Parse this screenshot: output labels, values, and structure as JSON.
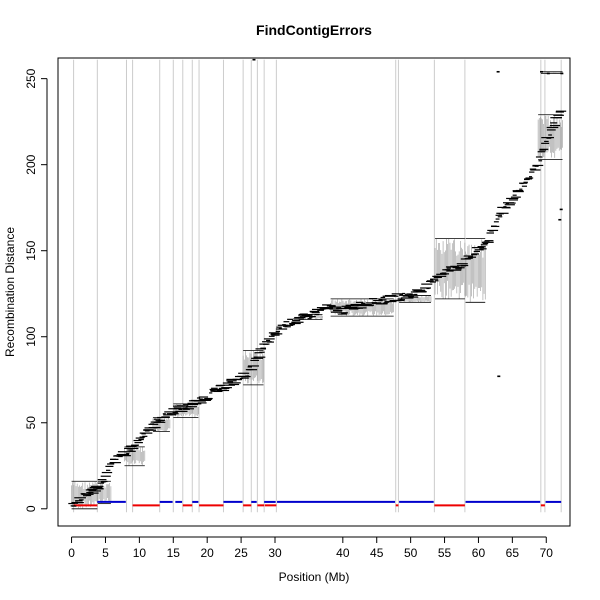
{
  "chart_data": {
    "type": "scatter",
    "title": "FindContigErrors",
    "xlabel": "Position (Mb)",
    "ylabel": "Recombination Distance",
    "xlim": [
      -2,
      73.5
    ],
    "ylim": [
      -10,
      262
    ],
    "x_ticks": [
      0,
      5,
      10,
      15,
      20,
      25,
      30,
      40,
      45,
      50,
      55,
      60,
      65,
      70
    ],
    "x_tick_labels": [
      "0",
      "5",
      "10",
      "15",
      "20",
      "25",
      "30",
      "40",
      "45",
      "50",
      "55",
      "60",
      "65",
      "70"
    ],
    "y_ticks": [
      0,
      50,
      100,
      150,
      200,
      250
    ],
    "y_tick_labels": [
      "0",
      "50",
      "100",
      "150",
      "200",
      "250"
    ],
    "grid": false,
    "colors": {
      "points": "#000000",
      "boundary_lines": "#cccccc",
      "interval_bars": "#999999",
      "good_segments": "#0000cc",
      "error_segments": "#ee0000"
    },
    "contig_boundaries": [
      0.3,
      3.8,
      8.1,
      9.0,
      13.0,
      15.0,
      16.4,
      17.8,
      18.8,
      22.4,
      25.3,
      26.5,
      27.4,
      28.4,
      30.2,
      47.8,
      48.2,
      53.5,
      58.0,
      69.2,
      69.8,
      72.2
    ],
    "trend": [
      [
        0.0,
        2
      ],
      [
        1.0,
        5
      ],
      [
        2.0,
        8
      ],
      [
        3.0,
        10
      ],
      [
        4.0,
        13
      ],
      [
        5.0,
        18
      ],
      [
        6.0,
        27
      ],
      [
        7.0,
        30
      ],
      [
        8.0,
        33
      ],
      [
        9.0,
        35
      ],
      [
        10.0,
        40
      ],
      [
        11.0,
        45
      ],
      [
        12.0,
        48
      ],
      [
        13.0,
        52
      ],
      [
        14.0,
        54
      ],
      [
        15.0,
        57
      ],
      [
        16.0,
        58
      ],
      [
        17.0,
        59
      ],
      [
        18.0,
        61
      ],
      [
        19.0,
        63
      ],
      [
        20.0,
        65
      ],
      [
        21.0,
        68
      ],
      [
        22.0,
        70
      ],
      [
        23.0,
        72
      ],
      [
        24.0,
        74
      ],
      [
        25.0,
        76
      ],
      [
        26.0,
        79
      ],
      [
        27.0,
        85
      ],
      [
        28.0,
        92
      ],
      [
        29.0,
        97
      ],
      [
        30.0,
        101
      ],
      [
        31.0,
        106
      ],
      [
        32.0,
        108
      ],
      [
        33.0,
        109
      ],
      [
        34.0,
        111
      ],
      [
        35.0,
        112
      ],
      [
        36.0,
        114
      ],
      [
        37.0,
        116
      ],
      [
        38.0,
        117
      ],
      [
        40.0,
        115
      ],
      [
        42.0,
        118
      ],
      [
        44.0,
        120
      ],
      [
        46.0,
        121
      ],
      [
        48.0,
        123
      ],
      [
        50.0,
        124
      ],
      [
        52.0,
        128
      ],
      [
        53.0,
        131
      ],
      [
        54.0,
        135
      ],
      [
        55.0,
        138
      ],
      [
        56.0,
        139
      ],
      [
        57.0,
        141
      ],
      [
        58.0,
        143
      ],
      [
        59.0,
        147
      ],
      [
        60.0,
        150
      ],
      [
        61.0,
        154
      ],
      [
        62.0,
        160
      ],
      [
        63.0,
        170
      ],
      [
        64.0,
        176
      ],
      [
        65.0,
        180
      ],
      [
        66.0,
        185
      ],
      [
        67.0,
        190
      ],
      [
        68.0,
        196
      ],
      [
        69.0,
        203
      ],
      [
        70.0,
        212
      ],
      [
        71.0,
        222
      ],
      [
        72.0,
        230
      ]
    ],
    "bands": [
      {
        "x0": 0.0,
        "x1": 3.8,
        "y0": 0,
        "y1": 16
      },
      {
        "x0": 3.9,
        "x1": 5.8,
        "y0": 3,
        "y1": 16
      },
      {
        "x0": 7.8,
        "x1": 10.8,
        "y0": 25,
        "y1": 36
      },
      {
        "x0": 12.0,
        "x1": 14.5,
        "y0": 45,
        "y1": 53
      },
      {
        "x0": 15.0,
        "x1": 18.7,
        "y0": 53,
        "y1": 61
      },
      {
        "x0": 25.3,
        "x1": 28.3,
        "y0": 72,
        "y1": 92
      },
      {
        "x0": 33.5,
        "x1": 37.0,
        "y0": 110,
        "y1": 113
      },
      {
        "x0": 38.2,
        "x1": 47.5,
        "y0": 112,
        "y1": 122
      },
      {
        "x0": 48.3,
        "x1": 53.0,
        "y0": 120,
        "y1": 124
      },
      {
        "x0": 53.6,
        "x1": 58.0,
        "y0": 122,
        "y1": 157
      },
      {
        "x0": 58.1,
        "x1": 61.0,
        "y0": 120,
        "y1": 157
      },
      {
        "x0": 68.8,
        "x1": 72.4,
        "y0": 203,
        "y1": 229
      },
      {
        "x0": 69.2,
        "x1": 72.4,
        "y0": 253,
        "y1": 254
      }
    ],
    "outliers": [
      [
        26.9,
        261
      ],
      [
        62.9,
        254
      ],
      [
        63.0,
        77
      ],
      [
        72.0,
        168
      ],
      [
        72.2,
        174
      ],
      [
        72.3,
        253
      ],
      [
        69.3,
        254
      ],
      [
        70.3,
        253
      ]
    ],
    "good_segments": [
      {
        "x0": 3.8,
        "x1": 8.0,
        "y": 4
      },
      {
        "x0": 13.0,
        "x1": 14.9,
        "y": 4
      },
      {
        "x0": 15.3,
        "x1": 16.3,
        "y": 4
      },
      {
        "x0": 17.8,
        "x1": 18.7,
        "y": 4
      },
      {
        "x0": 22.4,
        "x1": 25.2,
        "y": 4
      },
      {
        "x0": 26.5,
        "x1": 27.3,
        "y": 4
      },
      {
        "x0": 28.4,
        "x1": 30.1,
        "y": 4
      },
      {
        "x0": 30.3,
        "x1": 47.7,
        "y": 4
      },
      {
        "x0": 48.3,
        "x1": 53.4,
        "y": 4
      },
      {
        "x0": 58.1,
        "x1": 69.1,
        "y": 4
      },
      {
        "x0": 69.9,
        "x1": 72.2,
        "y": 4
      }
    ],
    "error_segments": [
      {
        "x0": 0.3,
        "x1": 3.8,
        "y": 2
      },
      {
        "x0": 9.0,
        "x1": 13.0,
        "y": 2
      },
      {
        "x0": 16.4,
        "x1": 17.8,
        "y": 2
      },
      {
        "x0": 18.8,
        "x1": 22.4,
        "y": 2
      },
      {
        "x0": 25.3,
        "x1": 26.5,
        "y": 2
      },
      {
        "x0": 27.4,
        "x1": 28.4,
        "y": 2
      },
      {
        "x0": 28.5,
        "x1": 30.2,
        "y": 2
      },
      {
        "x0": 47.8,
        "x1": 48.2,
        "y": 2
      },
      {
        "x0": 53.5,
        "x1": 58.0,
        "y": 2
      },
      {
        "x0": 69.2,
        "x1": 69.8,
        "y": 2
      }
    ]
  }
}
